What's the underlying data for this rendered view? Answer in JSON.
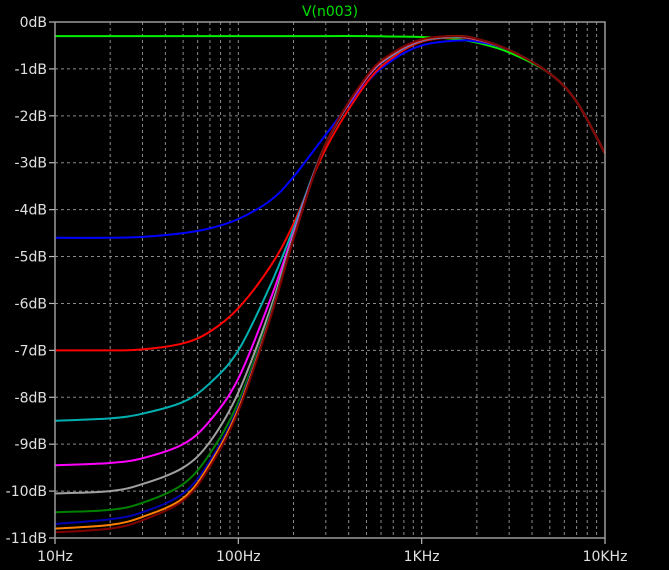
{
  "chart_data": {
    "type": "line",
    "title": "V(n003)",
    "x_scale": "log",
    "xlim": [
      10,
      10000
    ],
    "ylim": [
      -11,
      0
    ],
    "x_ticks": [
      {
        "value": 10,
        "label": "10Hz"
      },
      {
        "value": 100,
        "label": "100Hz"
      },
      {
        "value": 1000,
        "label": "1KHz"
      },
      {
        "value": 10000,
        "label": "10KHz"
      }
    ],
    "y_ticks": [
      {
        "value": 0,
        "label": "0dB"
      },
      {
        "value": -1,
        "label": "-1dB"
      },
      {
        "value": -2,
        "label": "-2dB"
      },
      {
        "value": -3,
        "label": "-3dB"
      },
      {
        "value": -4,
        "label": "-4dB"
      },
      {
        "value": -5,
        "label": "-5dB"
      },
      {
        "value": -6,
        "label": "-6dB"
      },
      {
        "value": -7,
        "label": "-7dB"
      },
      {
        "value": -8,
        "label": "-8dB"
      },
      {
        "value": -9,
        "label": "-9dB"
      },
      {
        "value": -10,
        "label": "-10dB"
      },
      {
        "value": -11,
        "label": "-11dB"
      }
    ],
    "grid": true,
    "x": [
      10,
      20,
      30,
      50,
      70,
      100,
      150,
      200,
      300,
      500,
      700,
      1000,
      1500,
      2000,
      3000,
      5000,
      7000,
      10000
    ],
    "series": [
      {
        "color": "#00ee00",
        "values": [
          -0.3,
          -0.3,
          -0.3,
          -0.3,
          -0.3,
          -0.3,
          -0.3,
          -0.3,
          -0.3,
          -0.3,
          -0.31,
          -0.32,
          -0.36,
          -0.44,
          -0.65,
          -1.1,
          -1.7,
          -2.8
        ]
      },
      {
        "color": "#0000ff",
        "values": [
          -4.6,
          -4.6,
          -4.58,
          -4.5,
          -4.4,
          -4.2,
          -3.8,
          -3.3,
          -2.4,
          -1.3,
          -0.8,
          -0.5,
          -0.4,
          -0.42,
          -0.6,
          -1.1,
          -1.7,
          -2.8
        ]
      },
      {
        "color": "#ff0000",
        "values": [
          -7.0,
          -7.0,
          -6.98,
          -6.85,
          -6.6,
          -6.1,
          -5.2,
          -4.3,
          -2.7,
          -1.3,
          -0.75,
          -0.42,
          -0.33,
          -0.38,
          -0.6,
          -1.1,
          -1.7,
          -2.8
        ]
      },
      {
        "color": "#00b0b0",
        "values": [
          -8.5,
          -8.45,
          -8.35,
          -8.1,
          -7.7,
          -7.0,
          -5.6,
          -4.4,
          -2.6,
          -1.2,
          -0.7,
          -0.4,
          -0.32,
          -0.37,
          -0.6,
          -1.1,
          -1.7,
          -2.8
        ]
      },
      {
        "color": "#ff00ff",
        "values": [
          -9.45,
          -9.4,
          -9.3,
          -9.0,
          -8.5,
          -7.6,
          -5.9,
          -4.5,
          -2.6,
          -1.2,
          -0.68,
          -0.39,
          -0.31,
          -0.37,
          -0.6,
          -1.1,
          -1.7,
          -2.8
        ]
      },
      {
        "color": "#a0a0a0",
        "values": [
          -10.05,
          -10.0,
          -9.85,
          -9.5,
          -8.95,
          -7.9,
          -6.1,
          -4.55,
          -2.6,
          -1.18,
          -0.67,
          -0.38,
          -0.31,
          -0.37,
          -0.6,
          -1.1,
          -1.7,
          -2.8
        ]
      },
      {
        "color": "#008000",
        "values": [
          -10.45,
          -10.4,
          -10.25,
          -9.85,
          -9.2,
          -8.1,
          -6.2,
          -4.6,
          -2.6,
          -1.17,
          -0.66,
          -0.38,
          -0.3,
          -0.36,
          -0.6,
          -1.1,
          -1.7,
          -2.8
        ]
      },
      {
        "color": "#0000b0",
        "values": [
          -10.7,
          -10.6,
          -10.45,
          -10.05,
          -9.35,
          -8.2,
          -6.25,
          -4.6,
          -2.6,
          -1.17,
          -0.66,
          -0.38,
          -0.3,
          -0.36,
          -0.6,
          -1.1,
          -1.7,
          -2.8
        ]
      },
      {
        "color": "#ff8000",
        "values": [
          -10.8,
          -10.72,
          -10.55,
          -10.15,
          -9.42,
          -8.25,
          -6.28,
          -4.62,
          -2.6,
          -1.17,
          -0.66,
          -0.38,
          -0.3,
          -0.36,
          -0.6,
          -1.1,
          -1.7,
          -2.8
        ]
      },
      {
        "color": "#800000",
        "values": [
          -10.88,
          -10.8,
          -10.62,
          -10.2,
          -9.48,
          -8.3,
          -6.3,
          -4.63,
          -2.6,
          -1.16,
          -0.65,
          -0.37,
          -0.3,
          -0.36,
          -0.6,
          -1.1,
          -1.7,
          -2.8
        ]
      }
    ]
  }
}
